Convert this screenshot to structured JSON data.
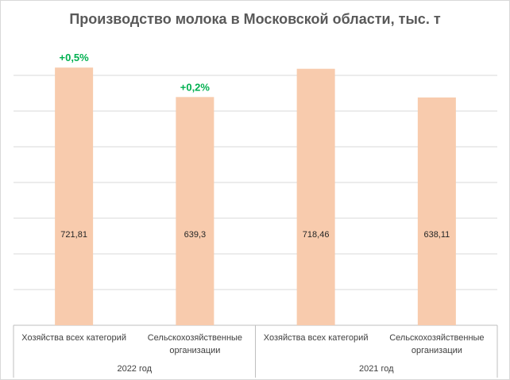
{
  "chart_data": {
    "type": "bar",
    "title": "Производство молока в Московской области, тыс. т",
    "xlabel": "",
    "ylabel": "",
    "ylim": [
      0,
      800
    ],
    "grid": true,
    "legend": "none",
    "groups": [
      {
        "label": "2022 год",
        "bars": [
          {
            "category": [
              "Хозяйства всех категорий"
            ],
            "value": 721.81,
            "value_label": "721,81",
            "annotation": "+0,5%"
          },
          {
            "category": [
              "Сельскохозяйственные",
              "организации"
            ],
            "value": 639.3,
            "value_label": "639,3",
            "annotation": "+0,2%"
          }
        ]
      },
      {
        "label": "2021 год",
        "bars": [
          {
            "category": [
              "Хозяйства всех категорий"
            ],
            "value": 718.46,
            "value_label": "718,46",
            "annotation": ""
          },
          {
            "category": [
              "Сельскохозяйственные",
              "организации"
            ],
            "value": 638.11,
            "value_label": "638,11",
            "annotation": ""
          }
        ]
      }
    ],
    "colors": {
      "bar": "#f8cbad",
      "annotation": "#00b050",
      "grid": "#d9d9d9",
      "axis": "#bfbfbf"
    }
  }
}
